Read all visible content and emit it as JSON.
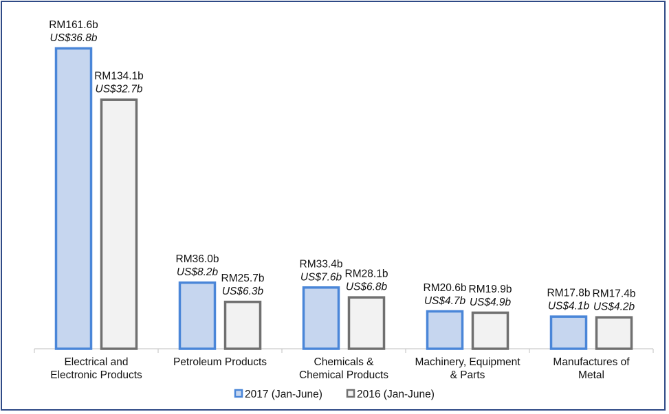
{
  "chart_data": {
    "type": "bar",
    "categories": [
      [
        "Electrical and",
        "Electronic Products"
      ],
      [
        "Petroleum Products"
      ],
      [
        "Chemicals &",
        "Chemical Products"
      ],
      [
        "Machinery, Equipment",
        "& Parts"
      ],
      [
        "Manufactures of",
        "Metal"
      ]
    ],
    "series": [
      {
        "name": "2017 (Jan-June)",
        "values": [
          161.6,
          36.0,
          33.4,
          20.6,
          17.8
        ],
        "labels_rm": [
          "RM161.6b",
          "RM36.0b",
          "RM33.4b",
          "RM20.6b",
          "RM17.8b"
        ],
        "labels_us": [
          "US$36.8b",
          "US$8.2b",
          "US$7.6b",
          "US$4.7b",
          "US$4.1b"
        ],
        "fill": "#c6d6ef",
        "stroke": "#4a86d8"
      },
      {
        "name": "2016 (Jan-June)",
        "values": [
          134.1,
          25.7,
          28.1,
          19.9,
          17.4
        ],
        "labels_rm": [
          "RM134.1b",
          "RM25.7b",
          "RM28.1b",
          "RM19.9b",
          "RM17.4b"
        ],
        "labels_us": [
          "US$32.7b",
          "US$6.3b",
          "US$6.8b",
          "US$4.9b",
          "US$4.2b"
        ],
        "fill": "#f2f2f2",
        "stroke": "#707070"
      }
    ],
    "ylim": [
      0,
      161.6
    ],
    "grid": false,
    "legend_position": "bottom"
  }
}
